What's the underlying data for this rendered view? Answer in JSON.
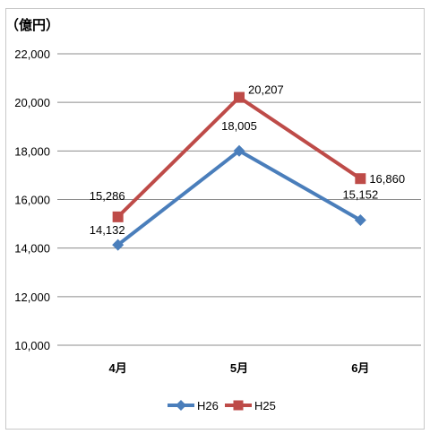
{
  "chart_data": {
    "type": "line",
    "unit_label": "（億円）",
    "categories": [
      "4月",
      "5月",
      "6月"
    ],
    "ylim": [
      10000,
      22000
    ],
    "y_ticks": [
      10000,
      12000,
      14000,
      16000,
      18000,
      20000,
      22000
    ],
    "y_tick_labels": [
      "10,000",
      "12,000",
      "14,000",
      "16,000",
      "18,000",
      "20,000",
      "22,000"
    ],
    "grid": true,
    "legend_position": "bottom",
    "series": [
      {
        "name": "H26",
        "values": [
          14132,
          18005,
          15152
        ],
        "data_labels": [
          "14,132",
          "18,005",
          "15,152"
        ],
        "color": "#4a7ebb",
        "marker": "diamond"
      },
      {
        "name": "H25",
        "values": [
          15286,
          20207,
          16860
        ],
        "data_labels": [
          "15,286",
          "20,207",
          "16,860"
        ],
        "color": "#be4b48",
        "marker": "square"
      }
    ]
  }
}
